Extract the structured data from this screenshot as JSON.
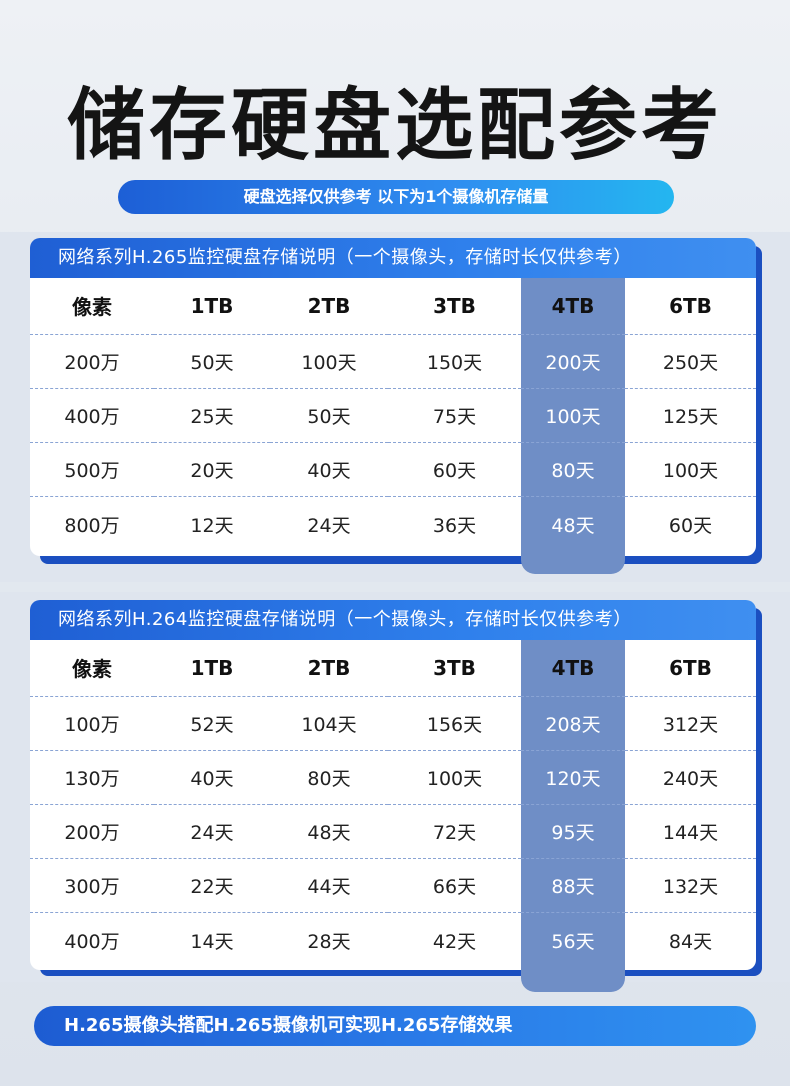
{
  "page": {
    "title": "储存硬盘选配参考",
    "subtitle": "硬盘选择仅供参考 以下为1个摄像机存储量",
    "footer": "H.265摄像头搭配H.265摄像机可实现H.265存储效果"
  },
  "colors": {
    "header_blue": "#2f80ec",
    "highlight_column": "#6f8ec6",
    "panel_shadow": "#1b4fc0"
  },
  "tables": [
    {
      "title": "网络系列H.265监控硬盘存储说明（一个摄像头，存储时长仅供参考）",
      "columns": [
        "像素",
        "1TB",
        "2TB",
        "3TB",
        "4TB",
        "6TB"
      ],
      "highlight_column": "4TB",
      "rows": [
        [
          "200万",
          "50天",
          "100天",
          "150天",
          "200天",
          "250天"
        ],
        [
          "400万",
          "25天",
          "50天",
          "75天",
          "100天",
          "125天"
        ],
        [
          "500万",
          "20天",
          "40天",
          "60天",
          "80天",
          "100天"
        ],
        [
          "800万",
          "12天",
          "24天",
          "36天",
          "48天",
          "60天"
        ]
      ]
    },
    {
      "title": "网络系列H.264监控硬盘存储说明（一个摄像头，存储时长仅供参考）",
      "columns": [
        "像素",
        "1TB",
        "2TB",
        "3TB",
        "4TB",
        "6TB"
      ],
      "highlight_column": "4TB",
      "rows": [
        [
          "100万",
          "52天",
          "104天",
          "156天",
          "208天",
          "312天"
        ],
        [
          "130万",
          "40天",
          "80天",
          "100天",
          "120天",
          "240天"
        ],
        [
          "200万",
          "24天",
          "48天",
          "72天",
          "95天",
          "144天"
        ],
        [
          "300万",
          "22天",
          "44天",
          "66天",
          "88天",
          "132天"
        ],
        [
          "400万",
          "14天",
          "28天",
          "42天",
          "56天",
          "84天"
        ]
      ]
    }
  ]
}
